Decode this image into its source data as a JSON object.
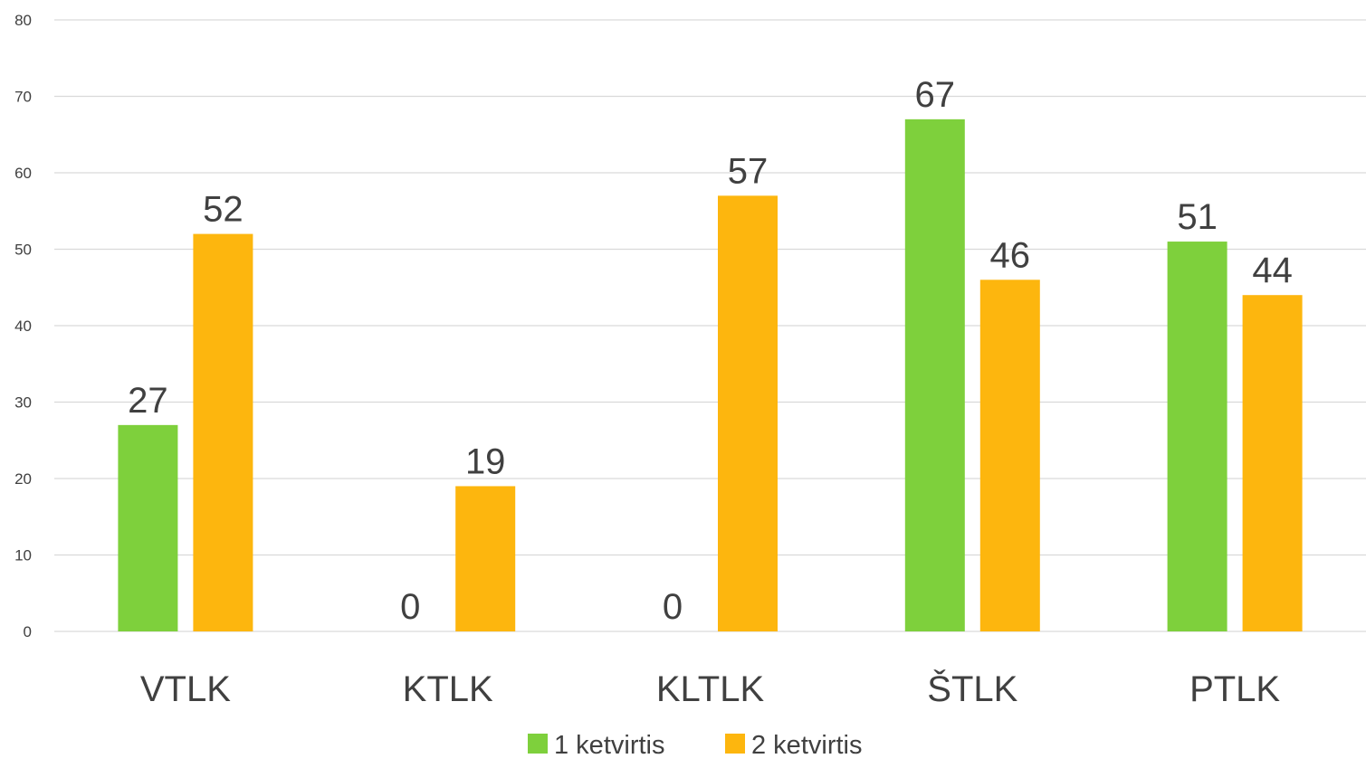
{
  "chart_data": {
    "type": "bar",
    "categories": [
      "VTLK",
      "KTLK",
      "KLTLK",
      "ŠTLK",
      "PTLK"
    ],
    "series": [
      {
        "name": "1 ketvirtis",
        "color": "#7ed03c",
        "values": [
          27,
          0,
          0,
          67,
          51
        ]
      },
      {
        "name": "2 ketvirtis",
        "color": "#fdb60e",
        "values": [
          52,
          19,
          57,
          46,
          44
        ]
      }
    ],
    "ylim": [
      0,
      80
    ],
    "yticks": [
      0,
      10,
      20,
      30,
      40,
      50,
      60,
      70,
      80
    ],
    "grid": true,
    "data_labels": true,
    "legend_position": "bottom",
    "gridline_color": "#d9d9d9",
    "text_color": "#404040"
  }
}
